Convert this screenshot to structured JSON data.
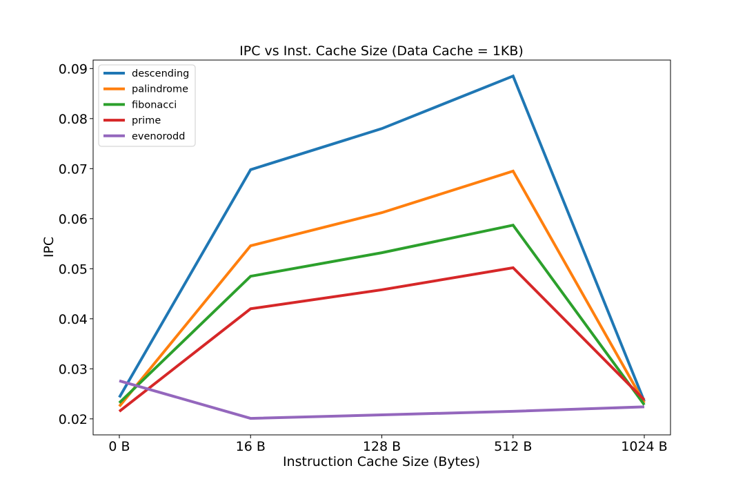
{
  "chart_data": {
    "type": "line",
    "title": "IPC vs Inst. Cache Size (Data Cache = 1KB)",
    "xlabel": "Instruction Cache Size (Bytes)",
    "ylabel": "IPC",
    "categories": [
      "0 B",
      "16 B",
      "128 B",
      "512 B",
      "1024 B"
    ],
    "ylim": [
      0.0168,
      0.0917
    ],
    "yticks": [
      0.02,
      0.03,
      0.04,
      0.05,
      0.06,
      0.07,
      0.08,
      0.09
    ],
    "ytick_labels": [
      "0.02",
      "0.03",
      "0.04",
      "0.05",
      "0.06",
      "0.07",
      "0.08",
      "0.09"
    ],
    "grid": false,
    "legend_position": "top-left",
    "series": [
      {
        "name": "descending",
        "color": "#1f77b4",
        "values": [
          0.0243,
          0.0698,
          0.078,
          0.0885,
          0.0235
        ]
      },
      {
        "name": "palindrome",
        "color": "#ff7f0e",
        "values": [
          0.0225,
          0.0546,
          0.0612,
          0.0695,
          0.0232
        ]
      },
      {
        "name": "fibonacci",
        "color": "#2ca02c",
        "values": [
          0.0232,
          0.0485,
          0.0532,
          0.0587,
          0.0228
        ]
      },
      {
        "name": "prime",
        "color": "#d62728",
        "values": [
          0.0215,
          0.042,
          0.0458,
          0.0502,
          0.0238
        ]
      },
      {
        "name": "evenorodd",
        "color": "#9467bd",
        "values": [
          0.0276,
          0.0201,
          0.0208,
          0.0215,
          0.0224
        ]
      }
    ]
  }
}
